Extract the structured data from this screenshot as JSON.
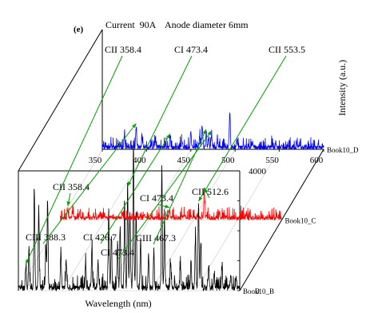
{
  "chart_data": {
    "type": "line",
    "panel_label": "(e)",
    "condition_text": "Current  90A    Anode diameter 6mm",
    "xlabel": "Wavelength (nm)",
    "x_ticks": [
      "350",
      "400",
      "450",
      "500",
      "550",
      "600"
    ],
    "xlim": [
      350,
      600
    ],
    "zlabel": "Intensity (a.u.)",
    "z_ticks": [
      "0",
      "4000"
    ],
    "zlim": [
      0,
      4000
    ],
    "series": [
      {
        "name": "Book10_B",
        "color": "#000000",
        "baseline": 80,
        "peaks": [
          [
            358.4,
            700
          ],
          [
            362,
            1400
          ],
          [
            368,
            3300
          ],
          [
            373,
            2700
          ],
          [
            381,
            1500
          ],
          [
            383,
            2800
          ],
          [
            398,
            1200
          ],
          [
            404,
            900
          ],
          [
            426,
            800
          ],
          [
            433,
            1300
          ],
          [
            440,
            900
          ],
          [
            452,
            2600
          ],
          [
            455,
            1700
          ],
          [
            462,
            1500
          ],
          [
            465,
            1900
          ],
          [
            470,
            2800
          ],
          [
            473.4,
            3300
          ],
          [
            476,
            2500
          ],
          [
            480,
            4800
          ],
          [
            483,
            2600
          ],
          [
            488,
            1600
          ],
          [
            497,
            1100
          ],
          [
            503,
            1300
          ],
          [
            512,
            4000
          ],
          [
            515,
            2200
          ],
          [
            522,
            800
          ],
          [
            533,
            700
          ],
          [
            545,
            900
          ],
          [
            550,
            1700
          ],
          [
            553.5,
            2800
          ],
          [
            556,
            1500
          ],
          [
            565,
            700
          ],
          [
            571,
            500
          ],
          [
            580,
            700
          ],
          [
            590,
            500
          ],
          [
            596,
            400
          ]
        ]
      },
      {
        "name": "Book10_C",
        "color": "#ff0000",
        "baseline": 60,
        "peaks": [
          [
            358.4,
            300
          ],
          [
            364,
            200
          ],
          [
            372,
            150
          ],
          [
            395,
            150
          ],
          [
            420,
            200
          ],
          [
            445,
            150
          ],
          [
            473.4,
            250
          ],
          [
            490,
            150
          ],
          [
            512.6,
            900
          ],
          [
            530,
            150
          ],
          [
            560,
            120
          ]
        ]
      },
      {
        "name": "Book10_D",
        "color": "#0000ff",
        "baseline": 60,
        "peaks": [
          [
            360,
            150
          ],
          [
            375,
            400
          ],
          [
            388.3,
            700
          ],
          [
            395,
            300
          ],
          [
            410,
            250
          ],
          [
            426.7,
            350
          ],
          [
            440,
            250
          ],
          [
            450,
            500
          ],
          [
            460,
            350
          ],
          [
            463,
            700
          ],
          [
            467.3,
            500
          ],
          [
            470,
            350
          ],
          [
            473.4,
            450
          ],
          [
            480,
            300
          ],
          [
            494,
            1200
          ],
          [
            502,
            250
          ],
          [
            520,
            200
          ],
          [
            546,
            200
          ],
          [
            570,
            150
          ]
        ]
      }
    ],
    "annotations": [
      {
        "text": "CII 358.4",
        "series": "Book10_B",
        "x": 358.4
      },
      {
        "text": "CI 473.4",
        "series": "Book10_B",
        "x": 473.4
      },
      {
        "text": "CII 553.5",
        "series": "Book10_B",
        "x": 553.5
      },
      {
        "text": "CII 358.4",
        "series": "Book10_C",
        "x": 358.4
      },
      {
        "text": "CI 473.4",
        "series": "Book10_C",
        "x": 473.4
      },
      {
        "text": "CII 512.6",
        "series": "Book10_C",
        "x": 512.6
      },
      {
        "text": "CIII 388.3",
        "series": "Book10_D",
        "x": 388.3
      },
      {
        "text": "CI 426.7",
        "series": "Book10_D",
        "x": 426.7
      },
      {
        "text": "CI 473.4",
        "series": "Book10_D",
        "x": 473.4
      },
      {
        "text": "CIII 467.3",
        "series": "Book10_D",
        "x": 467.3
      }
    ],
    "grid": true
  }
}
